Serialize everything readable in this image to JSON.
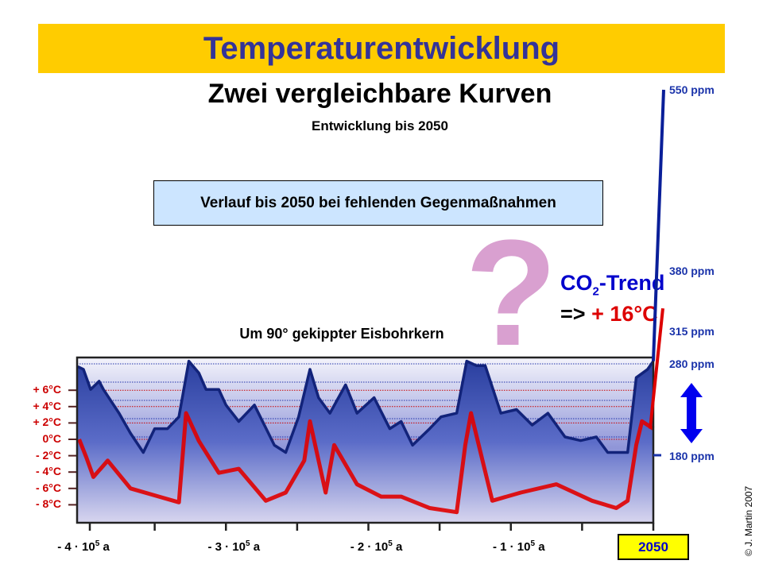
{
  "title": "Temperaturentwicklung",
  "subtitle": "Zwei vergleichbare Kurven",
  "subtitle2": "Entwicklung bis 2050",
  "scenario_box": "Verlauf bis 2050 bei fehlenden Gegenmaßnahmen",
  "question_mark": "?",
  "co2_trend": {
    "prefix": "CO",
    "sub": "2",
    "suffix": "-Trend"
  },
  "result": {
    "arrow": "=>",
    "value": "+ 16°C"
  },
  "copyright": "© J. Martin 2007",
  "colors": {
    "title_bg": "#FFCC00",
    "title_text": "#333399",
    "co2": "#0000CC",
    "temperature": "#DD0000",
    "box_bg": "#CCE5FF",
    "question_mark": "#D9A0D0",
    "year_box": "#FFFF00"
  },
  "icons": {
    "double_arrow": "vertical-double-arrow-icon"
  },
  "chart_data": {
    "type": "line",
    "title": "Um 90° gekippter Eisbohrkern",
    "x_unit": "years (thousands, relative)",
    "xlim": [
      -405,
      0
    ],
    "x_ticks": [
      {
        "value": -400,
        "label": "- 4 · 10",
        "exp": "5",
        "unit": " a"
      },
      {
        "value": -300,
        "label": "- 3 · 10",
        "exp": "5",
        "unit": " a"
      },
      {
        "value": -200,
        "label": "- 2 · 10",
        "exp": "5",
        "unit": " a"
      },
      {
        "value": -100,
        "label": "- 1 · 10",
        "exp": "5",
        "unit": " a"
      }
    ],
    "x_end_label": "2050",
    "temperature_axis": {
      "ticks": [
        "+ 6°C",
        "+ 4°C",
        "+ 2°C",
        "0°C",
        "- 2°C",
        "- 4°C",
        "- 6°C",
        "- 8°C"
      ],
      "values": [
        6,
        4,
        2,
        0,
        -2,
        -4,
        -6,
        -8
      ]
    },
    "ppm_labels": [
      "550 ppm",
      "380 ppm",
      "315 ppm",
      "280 ppm",
      "180 ppm"
    ],
    "grid": true,
    "series": [
      {
        "key": "co2",
        "unit": "ppm",
        "x": [
          -404,
          -400,
          -395,
          -389,
          -386,
          -375,
          -367,
          -358,
          -350,
          -341,
          -333,
          -326,
          -319,
          -314,
          -305,
          -300,
          -291,
          -280,
          -266,
          -258,
          -249,
          -241,
          -235,
          -227,
          -216,
          -208,
          -196,
          -185,
          -177,
          -169,
          -157,
          -149,
          -138,
          -131,
          -124,
          -118,
          -107,
          -96,
          -85,
          -74,
          -62,
          -51,
          -40,
          -32,
          -18,
          -12,
          -4,
          0
        ],
        "y": [
          277,
          274,
          252,
          261,
          252,
          226,
          204,
          183,
          209,
          209,
          222,
          283,
          270,
          252,
          252,
          235,
          217,
          235,
          191,
          183,
          222,
          274,
          243,
          226,
          257,
          226,
          243,
          209,
          217,
          191,
          209,
          222,
          226,
          283,
          278,
          278,
          226,
          230,
          213,
          226,
          200,
          196,
          200,
          183,
          183,
          265,
          274,
          283
        ],
        "trend_end": 550
      },
      {
        "key": "temperature",
        "unit": "°C",
        "x": [
          -403,
          -398,
          -393,
          -383,
          -367,
          -347,
          -333,
          -328,
          -319,
          -305,
          -291,
          -272,
          -258,
          -245,
          -241,
          -230,
          -224,
          -208,
          -191,
          -177,
          -157,
          -138,
          -132,
          -128,
          -113,
          -93,
          -68,
          -43,
          -26,
          -18,
          -12,
          -8,
          0
        ],
        "y": [
          0,
          -2.2,
          -4.6,
          -2.6,
          -6.0,
          -7.0,
          -7.7,
          3.2,
          -0.2,
          -4.1,
          -3.6,
          -7.5,
          -6.5,
          -2.6,
          2.2,
          -6.5,
          -0.7,
          -5.5,
          -7.0,
          -7.0,
          -8.4,
          -8.9,
          -0.7,
          3.2,
          -7.5,
          -6.5,
          -5.5,
          -7.5,
          -8.4,
          -7.5,
          -0.7,
          2.2,
          1.3
        ],
        "trend_end": 16
      }
    ]
  }
}
